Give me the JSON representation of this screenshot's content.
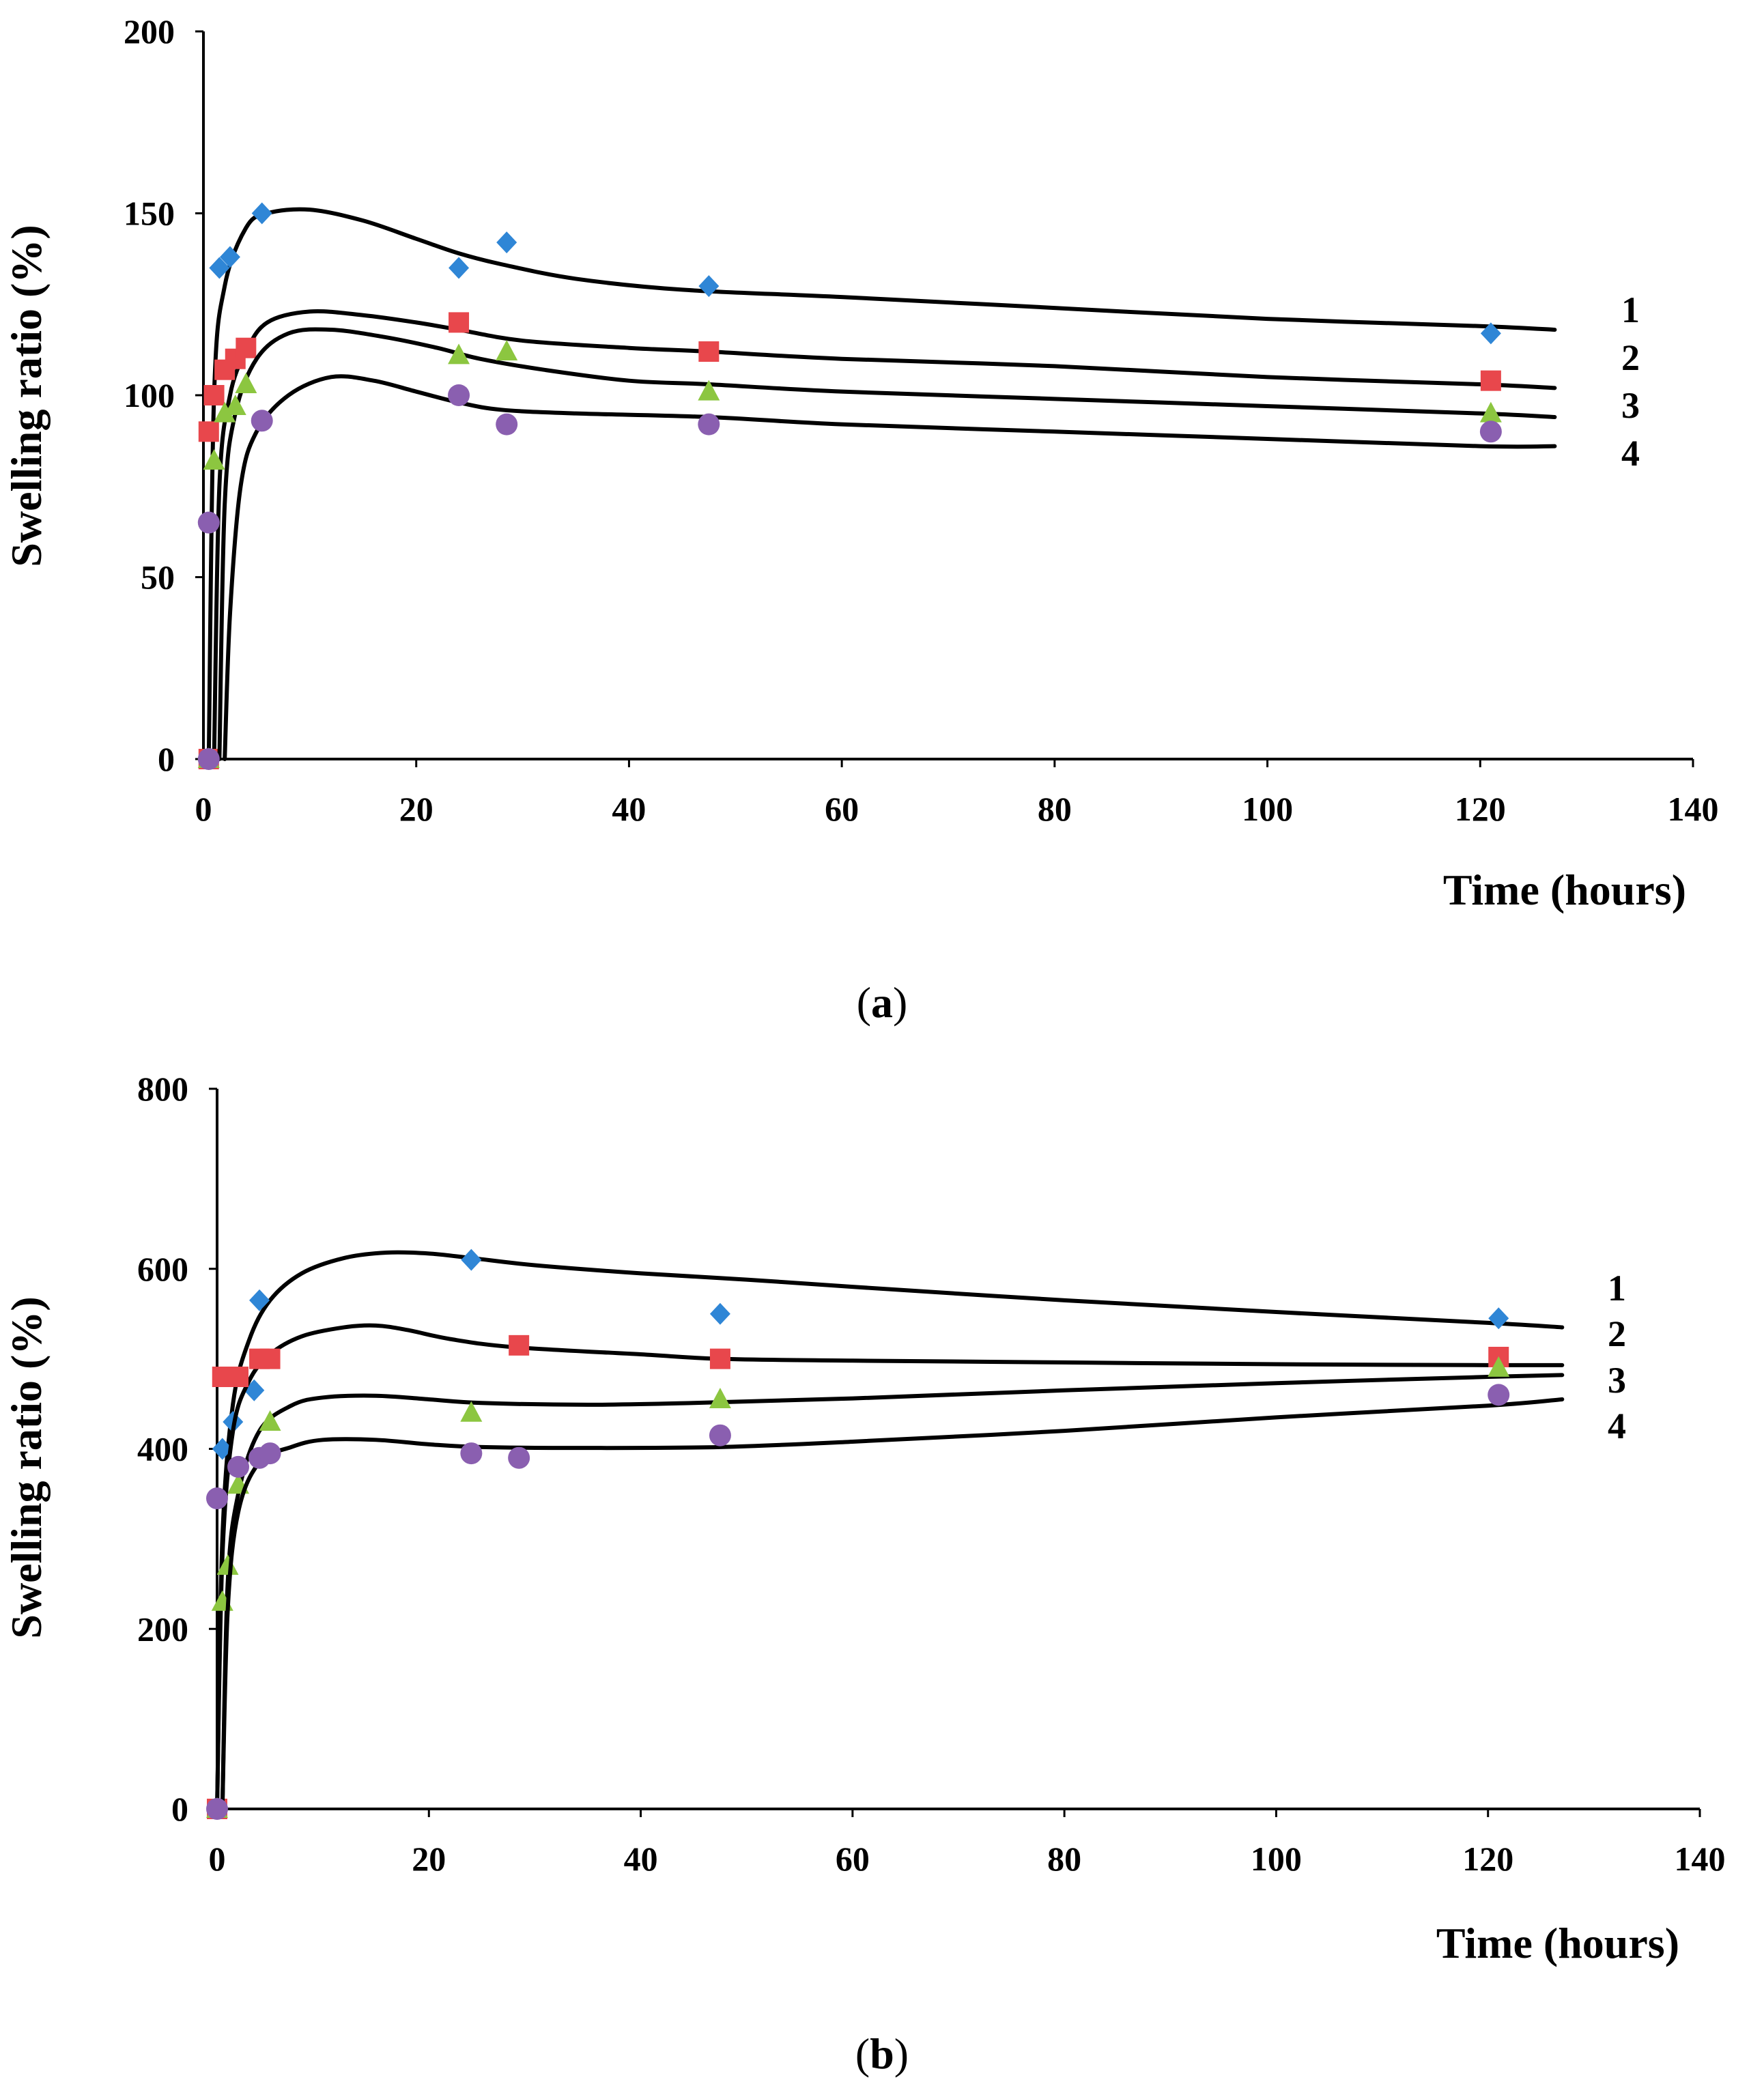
{
  "colors": {
    "series_1": "#2f86d6",
    "series_2": "#e8474c",
    "series_3": "#8cc640",
    "series_4": "#8a5fb0",
    "curve": "#000000"
  },
  "chart_data": [
    {
      "type": "scatter",
      "panel": "a",
      "caption": "a",
      "ylabel": "Swelling ratio (%)",
      "xlabel": "Time (hours)",
      "xlim": [
        0,
        140
      ],
      "ylim": [
        0,
        200
      ],
      "xticks": [
        0,
        20,
        40,
        60,
        80,
        100,
        120,
        140
      ],
      "yticks": [
        0,
        50,
        100,
        150,
        200
      ],
      "series": [
        {
          "name": "1",
          "marker": "diamond",
          "points": [
            [
              0.5,
              0
            ],
            [
              1.5,
              135
            ],
            [
              2.5,
              138
            ],
            [
              5.5,
              150
            ],
            [
              24,
              135
            ],
            [
              28.5,
              142
            ],
            [
              47.5,
              130
            ],
            [
              121,
              117
            ]
          ],
          "curve": [
            [
              0.5,
              0
            ],
            [
              1,
              100
            ],
            [
              2,
              130
            ],
            [
              4,
              146
            ],
            [
              6,
              150
            ],
            [
              10,
              151
            ],
            [
              15,
              148
            ],
            [
              20,
              143
            ],
            [
              24,
              139
            ],
            [
              28,
              136
            ],
            [
              35,
              132
            ],
            [
              45,
              129
            ],
            [
              60,
              127
            ],
            [
              80,
              124
            ],
            [
              100,
              121
            ],
            [
              120,
              119
            ],
            [
              127,
              118
            ]
          ]
        },
        {
          "name": "2",
          "marker": "square",
          "points": [
            [
              0.5,
              0
            ],
            [
              0.5,
              90
            ],
            [
              1,
              100
            ],
            [
              2,
              107
            ],
            [
              3,
              110
            ],
            [
              4,
              113
            ],
            [
              24,
              120
            ],
            [
              47.5,
              112
            ],
            [
              121,
              104
            ]
          ],
          "curve": [
            [
              1,
              0
            ],
            [
              1.5,
              75
            ],
            [
              2.5,
              100
            ],
            [
              4,
              112
            ],
            [
              6,
              120
            ],
            [
              10,
              123
            ],
            [
              15,
              122
            ],
            [
              20,
              120
            ],
            [
              24,
              118
            ],
            [
              30,
              115
            ],
            [
              40,
              113
            ],
            [
              47.5,
              112
            ],
            [
              60,
              110
            ],
            [
              80,
              108
            ],
            [
              100,
              105
            ],
            [
              120,
              103
            ],
            [
              127,
              102
            ]
          ]
        },
        {
          "name": "3",
          "marker": "triangle",
          "points": [
            [
              0.5,
              0
            ],
            [
              1,
              82
            ],
            [
              2,
              95
            ],
            [
              3,
              97
            ],
            [
              4,
              103
            ],
            [
              24,
              111
            ],
            [
              28.5,
              112
            ],
            [
              47.5,
              101
            ],
            [
              121,
              95
            ]
          ],
          "curve": [
            [
              1.5,
              0
            ],
            [
              2,
              70
            ],
            [
              3,
              95
            ],
            [
              5,
              110
            ],
            [
              8,
              117
            ],
            [
              12,
              118
            ],
            [
              17,
              116
            ],
            [
              22,
              113
            ],
            [
              26,
              110
            ],
            [
              32,
              107
            ],
            [
              40,
              104
            ],
            [
              47.5,
              103
            ],
            [
              60,
              101
            ],
            [
              80,
              99
            ],
            [
              100,
              97
            ],
            [
              120,
              95
            ],
            [
              127,
              94
            ]
          ]
        },
        {
          "name": "4",
          "marker": "circle",
          "points": [
            [
              0.5,
              0
            ],
            [
              0.5,
              65
            ],
            [
              5.5,
              93
            ],
            [
              24,
              100
            ],
            [
              28.5,
              92
            ],
            [
              47.5,
              92
            ],
            [
              121,
              90
            ]
          ],
          "curve": [
            [
              2,
              0
            ],
            [
              2.5,
              40
            ],
            [
              3.5,
              75
            ],
            [
              5,
              90
            ],
            [
              8,
              100
            ],
            [
              12,
              105
            ],
            [
              16,
              104
            ],
            [
              20,
              101
            ],
            [
              24,
              98
            ],
            [
              28,
              96
            ],
            [
              35,
              95
            ],
            [
              47.5,
              94
            ],
            [
              60,
              92
            ],
            [
              80,
              90
            ],
            [
              100,
              88
            ],
            [
              120,
              86
            ],
            [
              127,
              86
            ]
          ]
        }
      ]
    },
    {
      "type": "scatter",
      "panel": "b",
      "caption": "b",
      "ylabel": "Swelling ratio (%)",
      "xlabel": "Time (hours)",
      "xlim": [
        0,
        140
      ],
      "ylim": [
        0,
        800
      ],
      "xticks": [
        0,
        20,
        40,
        60,
        80,
        100,
        120,
        140
      ],
      "yticks": [
        0,
        200,
        400,
        600,
        800
      ],
      "series": [
        {
          "name": "1",
          "marker": "diamond",
          "points": [
            [
              0,
              0
            ],
            [
              0.5,
              400
            ],
            [
              1.5,
              430
            ],
            [
              3.5,
              465
            ],
            [
              4,
              565
            ],
            [
              24,
              610
            ],
            [
              47.5,
              550
            ],
            [
              121,
              545
            ]
          ],
          "curve": [
            [
              0,
              0
            ],
            [
              0.5,
              300
            ],
            [
              1.5,
              450
            ],
            [
              3,
              520
            ],
            [
              5,
              565
            ],
            [
              8,
              595
            ],
            [
              12,
              612
            ],
            [
              16,
              618
            ],
            [
              20,
              617
            ],
            [
              24,
              612
            ],
            [
              30,
              604
            ],
            [
              40,
              595
            ],
            [
              50,
              588
            ],
            [
              60,
              580
            ],
            [
              80,
              565
            ],
            [
              100,
              552
            ],
            [
              120,
              540
            ],
            [
              127,
              535
            ]
          ]
        },
        {
          "name": "2",
          "marker": "square",
          "points": [
            [
              0,
              0
            ],
            [
              0.5,
              480
            ],
            [
              2,
              480
            ],
            [
              4,
              500
            ],
            [
              5,
              500
            ],
            [
              28.5,
              515
            ],
            [
              47.5,
              500
            ],
            [
              121,
              502
            ]
          ],
          "curve": [
            [
              0,
              0
            ],
            [
              0.5,
              280
            ],
            [
              1.5,
              420
            ],
            [
              3,
              475
            ],
            [
              5,
              505
            ],
            [
              8,
              525
            ],
            [
              12,
              535
            ],
            [
              15,
              537
            ],
            [
              18,
              532
            ],
            [
              22,
              522
            ],
            [
              28,
              513
            ],
            [
              40,
              505
            ],
            [
              47.5,
              500
            ],
            [
              60,
              498
            ],
            [
              80,
              496
            ],
            [
              100,
              494
            ],
            [
              120,
              493
            ],
            [
              127,
              493
            ]
          ]
        },
        {
          "name": "3",
          "marker": "triangle",
          "points": [
            [
              0,
              0
            ],
            [
              0.5,
              230
            ],
            [
              1,
              270
            ],
            [
              2,
              360
            ],
            [
              5,
              430
            ],
            [
              24,
              440
            ],
            [
              47.5,
              455
            ],
            [
              121,
              490
            ]
          ],
          "curve": [
            [
              0.5,
              0
            ],
            [
              1,
              250
            ],
            [
              2,
              350
            ],
            [
              4,
              420
            ],
            [
              7,
              448
            ],
            [
              10,
              457
            ],
            [
              15,
              459
            ],
            [
              20,
              455
            ],
            [
              25,
              451
            ],
            [
              35,
              449
            ],
            [
              45,
              451
            ],
            [
              60,
              456
            ],
            [
              80,
              465
            ],
            [
              100,
              473
            ],
            [
              120,
              480
            ],
            [
              127,
              482
            ]
          ]
        },
        {
          "name": "4",
          "marker": "circle",
          "points": [
            [
              0,
              0
            ],
            [
              0,
              345
            ],
            [
              2,
              380
            ],
            [
              4,
              390
            ],
            [
              5,
              395
            ],
            [
              24,
              395
            ],
            [
              28.5,
              390
            ],
            [
              47.5,
              415
            ],
            [
              121,
              460
            ]
          ],
          "curve": [
            [
              0.5,
              0
            ],
            [
              1,
              220
            ],
            [
              2,
              330
            ],
            [
              4,
              385
            ],
            [
              7,
              402
            ],
            [
              10,
              410
            ],
            [
              15,
              410
            ],
            [
              20,
              405
            ],
            [
              25,
              402
            ],
            [
              35,
              401
            ],
            [
              47.5,
              402
            ],
            [
              60,
              408
            ],
            [
              80,
              420
            ],
            [
              100,
              435
            ],
            [
              120,
              448
            ],
            [
              127,
              455
            ]
          ]
        }
      ]
    }
  ]
}
